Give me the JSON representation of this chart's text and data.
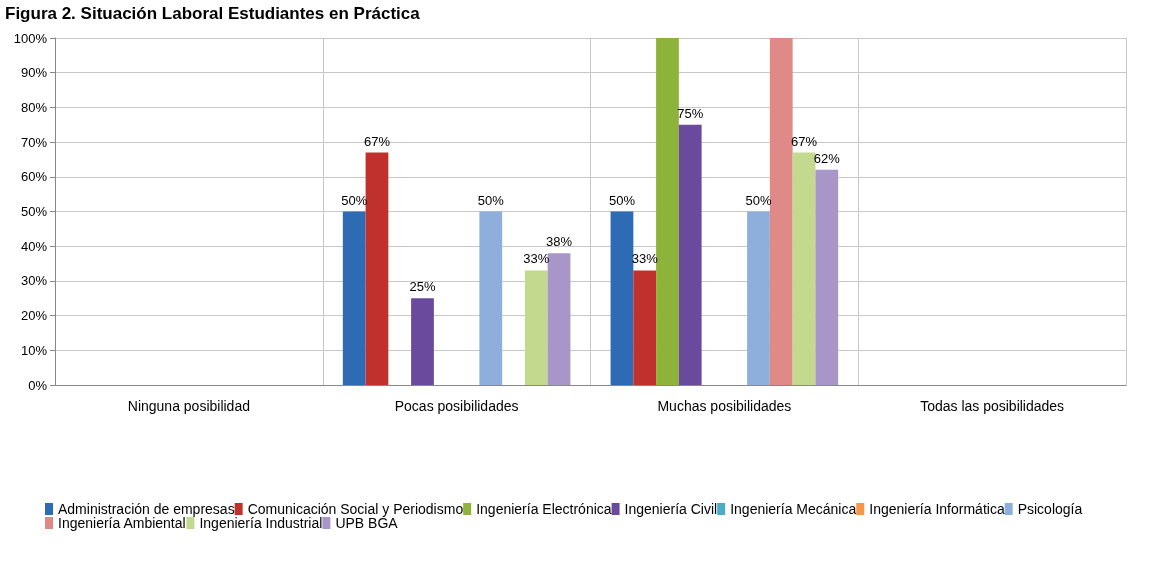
{
  "chart_data": {
    "type": "bar",
    "title": "Figura 2. Situación Laboral Estudiantes en Práctica",
    "categories": [
      "Ninguna posibilidad",
      "Pocas posibilidades",
      "Muchas posibilidades",
      "Todas las posibilidades"
    ],
    "ylim": [
      0,
      100
    ],
    "yticks": [
      {
        "value": 0,
        "label": "0%"
      },
      {
        "value": 10,
        "label": "10%"
      },
      {
        "value": 20,
        "label": "20%"
      },
      {
        "value": 30,
        "label": "30%"
      },
      {
        "value": 40,
        "label": "40%"
      },
      {
        "value": 50,
        "label": "50%"
      },
      {
        "value": 60,
        "label": "60%"
      },
      {
        "value": 70,
        "label": "70%"
      },
      {
        "value": 80,
        "label": "80%"
      },
      {
        "value": 90,
        "label": "90%"
      },
      {
        "value": 100,
        "label": "100%"
      }
    ],
    "grid": true,
    "legend": "bottom",
    "series": [
      {
        "name": "Administración de empresas",
        "color": "#2e6bb5",
        "values": [
          null,
          50,
          50,
          null
        ],
        "value_labels": [
          null,
          "50%",
          "50%",
          null
        ]
      },
      {
        "name": "Comunicación Social y Periodismo",
        "color": "#c0312e",
        "values": [
          null,
          67,
          33,
          null
        ],
        "value_labels": [
          null,
          "67%",
          "33%",
          null
        ]
      },
      {
        "name": "Ingeniería Electrónica",
        "color": "#8db33a",
        "values": [
          null,
          null,
          100,
          null
        ],
        "value_labels": [
          null,
          null,
          null,
          null
        ]
      },
      {
        "name": "Ingeniería Civil",
        "color": "#6a4a9c",
        "values": [
          null,
          25,
          75,
          null
        ],
        "value_labels": [
          null,
          "25%",
          "75%",
          null
        ]
      },
      {
        "name": "Ingeniería Mecánica",
        "color": "#4bacc6",
        "values": [
          null,
          null,
          null,
          null
        ],
        "value_labels": [
          null,
          null,
          null,
          null
        ]
      },
      {
        "name": "Ingeniería Informática",
        "color": "#f79646",
        "values": [
          null,
          null,
          null,
          null
        ],
        "value_labels": [
          null,
          null,
          null,
          null
        ]
      },
      {
        "name": "Psicología",
        "color": "#8eaedb",
        "values": [
          null,
          50,
          50,
          null
        ],
        "value_labels": [
          null,
          "50%",
          "50%",
          null
        ]
      },
      {
        "name": "Ingeniería Ambiental",
        "color": "#e08a88",
        "values": [
          null,
          null,
          100,
          null
        ],
        "value_labels": [
          null,
          null,
          null,
          null
        ]
      },
      {
        "name": "Ingeniería Industrial",
        "color": "#c3d98e",
        "values": [
          null,
          33,
          67,
          null
        ],
        "value_labels": [
          null,
          "33%",
          "67%",
          null
        ]
      },
      {
        "name": "UPB BGA",
        "color": "#a996c8",
        "values": [
          null,
          38,
          62,
          null
        ],
        "value_labels": [
          null,
          "38%",
          "62%",
          null
        ]
      }
    ]
  }
}
